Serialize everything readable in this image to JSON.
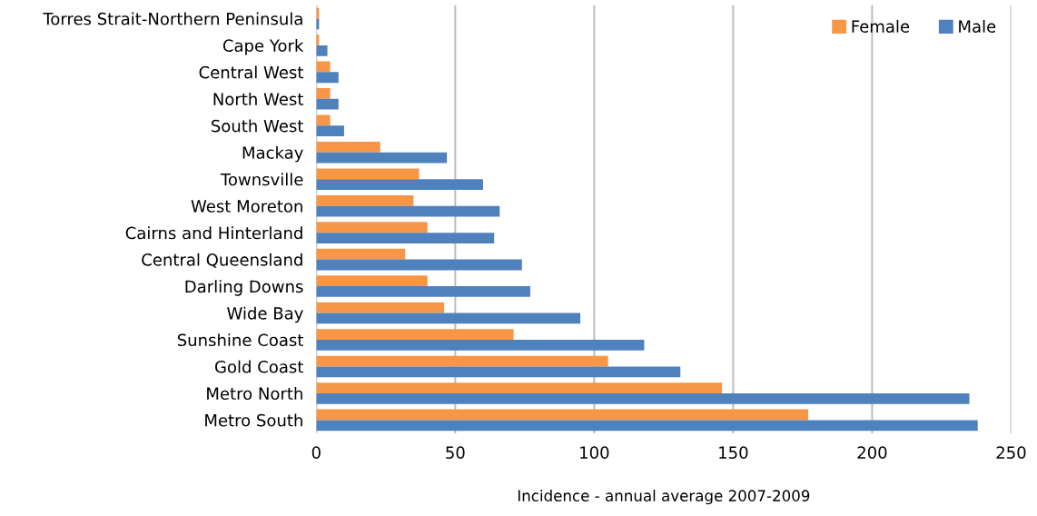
{
  "chart_data": {
    "type": "bar",
    "orientation": "horizontal",
    "xlabel": "Incidence - annual average 2007-2009",
    "categories": [
      "Torres Strait-Northern Peninsula",
      "Cape York",
      "Central West",
      "North West",
      "South West",
      "Mackay",
      "Townsville",
      "West Moreton",
      "Cairns and Hinterland",
      "Central Queensland",
      "Darling Downs",
      "Wide Bay",
      "Sunshine Coast",
      "Gold Coast",
      "Metro North",
      "Metro South"
    ],
    "series": [
      {
        "name": "Female",
        "color": "#f79646",
        "values": [
          1,
          1,
          5,
          5,
          5,
          23,
          37,
          35,
          40,
          32,
          40,
          46,
          71,
          105,
          146,
          177
        ]
      },
      {
        "name": "Male",
        "color": "#4f81bd",
        "values": [
          1,
          4,
          8,
          8,
          10,
          47,
          60,
          66,
          64,
          74,
          77,
          95,
          118,
          131,
          235,
          238
        ]
      }
    ],
    "xlim": [
      0,
      250
    ],
    "xticks": [
      0,
      50,
      100,
      150,
      200,
      250
    ],
    "grid": "x",
    "legend": "top right"
  }
}
